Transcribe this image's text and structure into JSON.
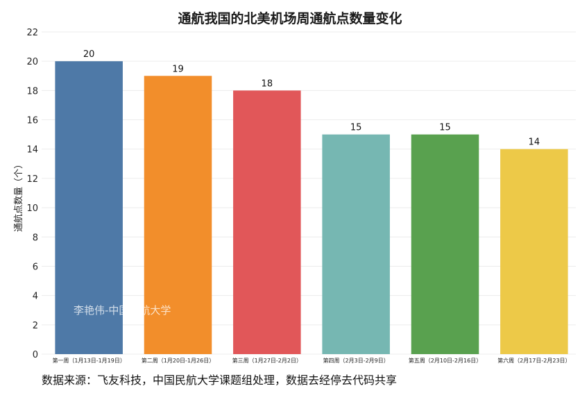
{
  "chart_data": {
    "type": "bar",
    "title": "通航我国的北美机场周通航点数量变化",
    "ylabel": "通航点数量（个）",
    "xlabel": "",
    "categories": [
      "第一周（1月13日-1月19日）",
      "第二周（1月20日-1月26日）",
      "第三周（1月27日-2月2日）",
      "第四周（2月3日-2月9日）",
      "第五周（2月10日-2月16日）",
      "第六周（2月17日-2月23日）"
    ],
    "values": [
      20,
      19,
      18,
      15,
      15,
      14
    ],
    "colors": [
      "#4e79a7",
      "#f28e2b",
      "#e15759",
      "#76b7b2",
      "#59a14f",
      "#edc948"
    ],
    "ylim": [
      0,
      22
    ],
    "yticks": [
      0,
      2,
      4,
      6,
      8,
      10,
      12,
      14,
      16,
      18,
      20,
      22
    ],
    "grid": true,
    "data_labels": true
  },
  "watermark": "李艳伟-中国民航大学",
  "source_note": "数据来源：飞友科技，中国民航大学课题组处理，数据去经停去代码共享"
}
